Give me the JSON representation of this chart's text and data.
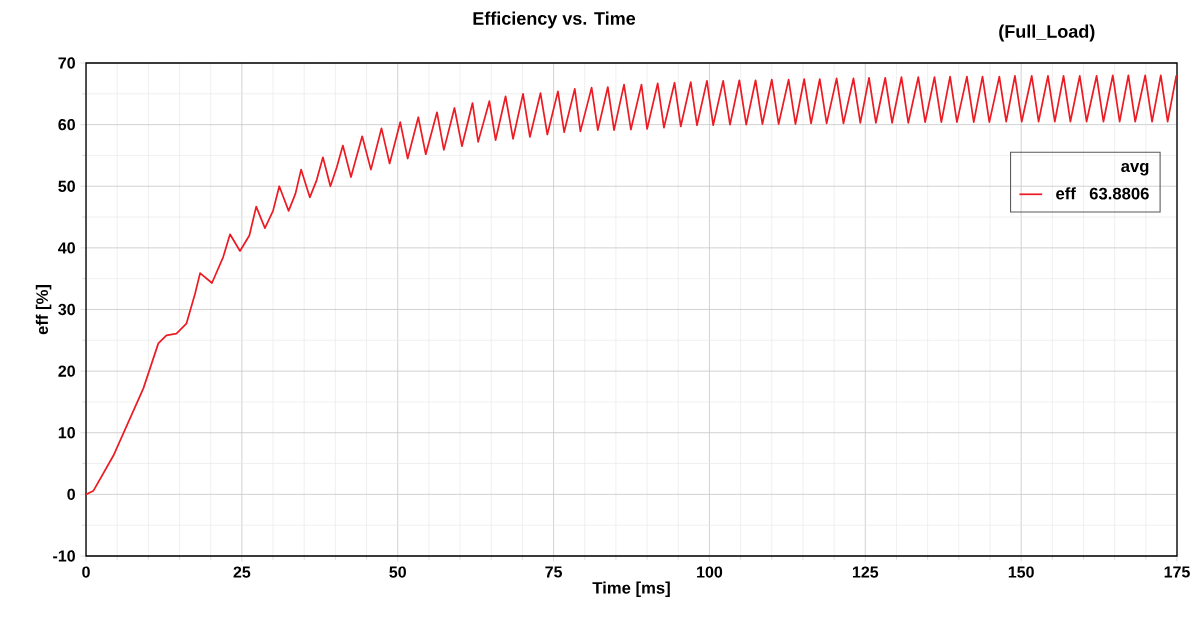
{
  "chart_data": {
    "type": "line",
    "title": "Efficiency vs. Time",
    "subtitle": "(Full_Load)",
    "xlabel": "Time [ms]",
    "ylabel": "eff [%]",
    "xlim": [
      0,
      175
    ],
    "xticks": [
      0,
      25,
      50,
      75,
      100,
      125,
      150,
      175
    ],
    "ylim": [
      -10,
      70
    ],
    "yticks": [
      -10,
      0,
      10,
      20,
      30,
      40,
      50,
      60,
      70
    ],
    "grid": true,
    "legend": "top right",
    "marker": "none",
    "line_style": "solid",
    "legend_title": "avg",
    "annotations": [
      "63.8806"
    ],
    "series": [
      {
        "name": "eff",
        "color": "#ed1c24",
        "x": [
          0,
          1.2,
          4.4,
          9.2,
          11.6,
          12.9,
          14.5,
          16.1,
          17.5,
          18.3,
          20.2,
          22.0,
          23.1,
          24.7,
          26.2,
          27.3,
          28.7,
          30.0,
          31.0,
          32.5,
          33.6,
          34.5,
          35.9,
          37.0,
          38.0,
          39.2,
          40.2,
          41.2,
          42.5,
          44.3,
          45.7,
          47.4,
          48.7,
          50.4,
          51.6,
          53.3,
          54.5,
          56.3,
          57.4,
          59.1,
          60.3,
          62.0,
          62.9,
          64.7,
          65.7,
          67.3,
          68.5,
          70.1,
          71.2,
          72.9,
          74.0,
          75.7,
          76.7,
          78.4,
          79.3,
          81.1,
          82.1,
          83.7,
          84.7,
          86.3,
          87.4,
          89.1,
          90.0,
          91.7,
          92.7,
          94.4,
          95.4,
          97.0,
          98.0,
          99.6,
          100.6,
          102.2,
          103.3,
          104.8,
          105.9,
          107.4,
          108.5,
          110.0,
          111.1,
          112.7,
          113.8,
          115.2,
          116.3,
          117.7,
          118.8,
          120.4,
          121.5,
          123.1,
          124.2,
          125.6,
          126.7,
          128.2,
          129.3,
          130.8,
          131.9,
          133.5,
          134.6,
          136.1,
          137.2,
          138.6,
          139.7,
          141.3,
          142.4,
          143.8,
          144.9,
          146.5,
          147.6,
          149.0,
          150.1,
          151.7,
          152.8,
          154.3,
          155.4,
          156.8,
          157.9,
          159.4,
          160.5,
          162.1,
          163.2,
          164.7,
          165.8,
          167.2,
          168.3,
          169.9,
          171.0,
          172.4,
          173.5,
          174.9
        ],
        "values": [
          0,
          0.6,
          6.3,
          17.2,
          24.5,
          25.8,
          26.1,
          27.7,
          32.6,
          35.9,
          34.3,
          38.5,
          42.2,
          39.5,
          42.0,
          46.7,
          43.2,
          46.0,
          50.0,
          46.0,
          48.8,
          52.7,
          48.2,
          51.0,
          54.7,
          50.0,
          53.0,
          56.6,
          51.5,
          58.1,
          52.7,
          59.4,
          53.7,
          60.4,
          54.5,
          61.2,
          55.2,
          62.0,
          55.9,
          62.7,
          56.5,
          63.5,
          57.2,
          63.8,
          57.5,
          64.6,
          57.7,
          65.0,
          58.0,
          65.1,
          58.4,
          65.4,
          58.8,
          65.8,
          58.9,
          66.0,
          59.1,
          66.1,
          59.1,
          66.5,
          59.2,
          66.5,
          59.3,
          66.7,
          59.5,
          66.8,
          59.7,
          66.9,
          59.9,
          67.1,
          59.9,
          67.1,
          60.0,
          67.2,
          60.0,
          67.2,
          60.1,
          67.3,
          60.1,
          67.3,
          60.1,
          67.4,
          60.2,
          67.4,
          60.2,
          67.5,
          60.2,
          67.5,
          60.3,
          67.6,
          60.3,
          67.6,
          60.3,
          67.7,
          60.3,
          67.7,
          60.4,
          67.7,
          60.4,
          67.8,
          60.4,
          67.8,
          60.4,
          67.8,
          60.4,
          67.8,
          60.5,
          67.9,
          60.5,
          67.9,
          60.5,
          67.9,
          60.5,
          67.9,
          60.5,
          67.9,
          60.5,
          67.9,
          60.5,
          68.0,
          60.5,
          68.0,
          60.5,
          68.0,
          60.5,
          68.0,
          60.5,
          68.0
        ]
      }
    ]
  }
}
